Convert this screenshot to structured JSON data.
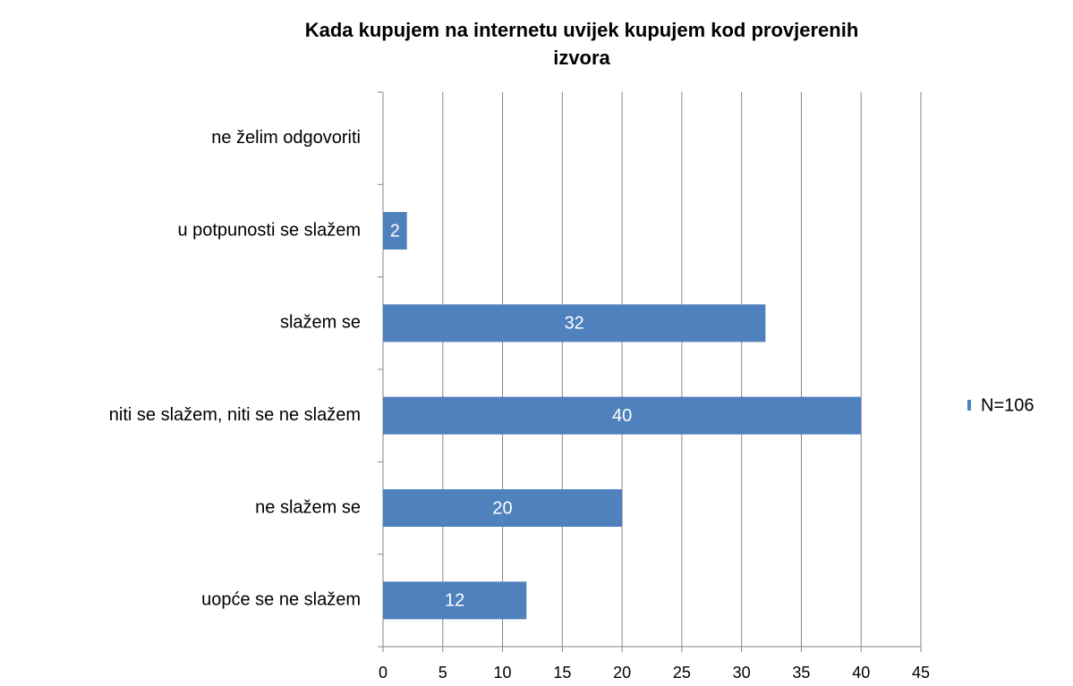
{
  "chart_data": {
    "type": "barh",
    "title": "Kada kupujem na internetu uvijek kupujem kod provjerenih izvora",
    "categories": [
      "uopće se ne slažem",
      "ne slažem se",
      "niti se slažem, niti se ne slažem",
      "slažem se",
      "u potpunosti se slažem",
      "ne želim odgovoriti"
    ],
    "series": [
      {
        "name": "N=106",
        "color": "#4f81bd",
        "values": [
          12,
          20,
          40,
          32,
          2,
          null
        ]
      }
    ],
    "xlim": [
      0,
      45
    ],
    "xticks": [
      0,
      5,
      10,
      15,
      20,
      25,
      30,
      35,
      40,
      45
    ],
    "grid": true,
    "legend": "right"
  }
}
